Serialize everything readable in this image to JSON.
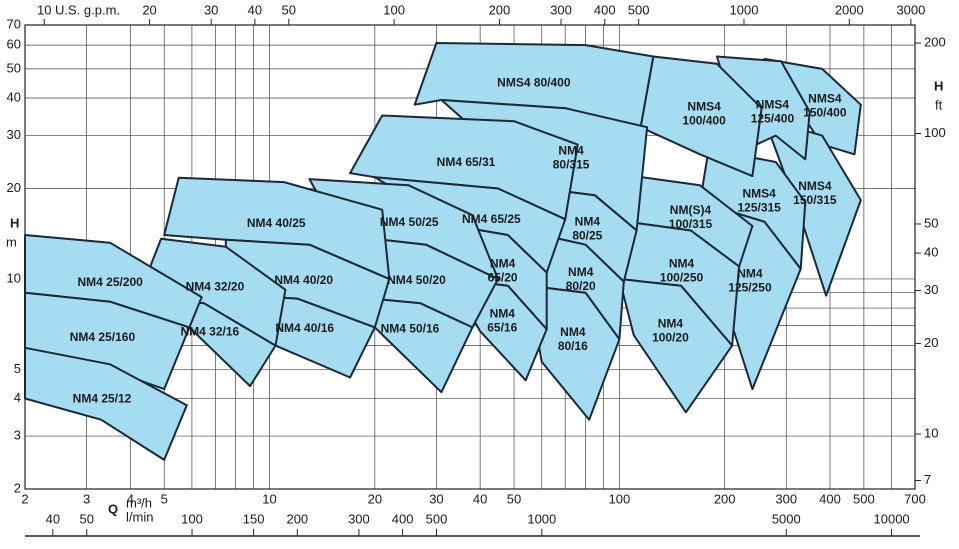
{
  "chart_data": {
    "type": "region",
    "log_scale": true,
    "grid": true,
    "fill": "#a6dcf2",
    "stroke": "#1b2836",
    "x_label": "Q",
    "x_unit": "m³/h",
    "x2_unit": "l/min",
    "x_top_label": "U.S. g.p.m.",
    "y_label": "H",
    "y_unit": "m",
    "y2_label": "H",
    "y2_unit": "ft",
    "xlim": [
      2,
      700
    ],
    "xticks": [
      2,
      3,
      4,
      5,
      10,
      20,
      30,
      40,
      50,
      100,
      200,
      300,
      400,
      500,
      700
    ],
    "x_minor_ticks": [
      6,
      7,
      8,
      9,
      60,
      70,
      80,
      90,
      600
    ],
    "ylim": [
      2,
      70
    ],
    "yticks": [
      2,
      3,
      4,
      5,
      10,
      20,
      30,
      40,
      50,
      60,
      70
    ],
    "y_minor_ticks": [
      6,
      7,
      8,
      9
    ],
    "top_xlim": [
      8.81,
      3082
    ],
    "top_xticks": [
      10,
      20,
      30,
      40,
      50,
      100,
      200,
      300,
      400,
      500,
      1000,
      2000,
      3000
    ],
    "bottom2_xlim": [
      33.3,
      11667
    ],
    "bottom2_xticks": [
      40,
      50,
      100,
      150,
      200,
      300,
      400,
      500,
      1000,
      5000,
      10000
    ],
    "y2lim": [
      6.56,
      229.7
    ],
    "y2ticks": [
      7,
      10,
      20,
      30,
      40,
      50,
      100,
      200
    ],
    "regions": [
      {
        "label": [
          "NMS4",
          "150/400"
        ],
        "q": [
          260,
          380,
          490,
          470,
          380
        ],
        "h": [
          54,
          50,
          38,
          26,
          28
        ]
      },
      {
        "label": [
          "NMS4",
          "150/315"
        ],
        "q": [
          260,
          380,
          490,
          390,
          330
        ],
        "h": [
          34,
          30,
          18.3,
          8.8,
          16
        ]
      },
      {
        "label": [
          "NMS4",
          "125/400"
        ],
        "q": [
          190,
          290,
          350,
          340,
          280,
          230
        ],
        "h": [
          55,
          53,
          36,
          25,
          30,
          27
        ]
      },
      {
        "label": [
          "NMS4",
          "125/315"
        ],
        "q": [
          180,
          280,
          340,
          330,
          260,
          170
        ],
        "h": [
          27,
          24.5,
          18,
          10.8,
          15.5,
          18
        ]
      },
      {
        "label": [
          "NM4",
          "125/250"
        ],
        "q": [
          170,
          260,
          330,
          240,
          210
        ],
        "h": [
          18,
          15.5,
          10.8,
          4.3,
          7
        ]
      },
      {
        "label": [
          "NMS4",
          "100/400"
        ],
        "q": [
          125,
          190,
          255,
          240,
          170,
          115
        ],
        "h": [
          55,
          52,
          37,
          22,
          26,
          32
        ]
      },
      {
        "label": [
          "NM(S)4",
          "100/315"
        ],
        "q": [
          110,
          170,
          240,
          220,
          160,
          105
        ],
        "h": [
          22,
          20.5,
          15,
          11,
          14.5,
          15.5
        ]
      },
      {
        "label": [
          "NM4",
          "100/250"
        ],
        "q": [
          105,
          160,
          220,
          210,
          150,
          100
        ],
        "h": [
          15.5,
          14.5,
          11,
          6,
          9.5,
          10
        ]
      },
      {
        "label": [
          "NM4",
          "100/20"
        ],
        "q": [
          100,
          150,
          210,
          155,
          110
        ],
        "h": [
          10,
          9.5,
          6,
          3.6,
          6.5
        ]
      },
      {
        "label": [
          "NMS4 80/400"
        ],
        "q": [
          30,
          80,
          125,
          115,
          70,
          31,
          26
        ],
        "h": [
          61,
          60,
          55,
          32,
          37,
          39.4,
          38
        ]
      },
      {
        "label": [
          "NM4",
          "80/315"
        ],
        "q": [
          31,
          70,
          120,
          112,
          85,
          60
        ],
        "h": [
          39.4,
          37,
          32,
          14.5,
          19,
          20
        ]
      },
      {
        "label": [
          "NM4",
          "80/25"
        ],
        "q": [
          60,
          85,
          112,
          103,
          80,
          60
        ],
        "h": [
          20,
          19,
          14.5,
          9.8,
          13,
          14
        ]
      },
      {
        "label": [
          "NM4",
          "80/20"
        ],
        "q": [
          60,
          80,
          103,
          100,
          80,
          55
        ],
        "h": [
          14,
          13,
          9.8,
          6.3,
          9,
          9.5
        ]
      },
      {
        "label": [
          "NM4",
          "80/16"
        ],
        "q": [
          55,
          80,
          100,
          82,
          60
        ],
        "h": [
          9.5,
          9,
          6.3,
          3.4,
          5.3
        ]
      },
      {
        "label": [
          "NM4 65/31"
        ],
        "q": [
          21,
          50,
          76,
          70,
          45,
          20,
          17
        ],
        "h": [
          35,
          33.5,
          28,
          15.8,
          20,
          21.8,
          22.5
        ]
      },
      {
        "label": [
          "NM4 65/25"
        ],
        "q": [
          20,
          45,
          70,
          62,
          48,
          34
        ],
        "h": [
          21.8,
          20,
          15.8,
          10.5,
          14,
          15
        ]
      },
      {
        "label": [
          "NM4",
          "65/20"
        ],
        "q": [
          34,
          48,
          62,
          62,
          48,
          33
        ],
        "h": [
          15,
          14,
          10.5,
          6.8,
          9.5,
          10
        ]
      },
      {
        "label": [
          "NM4",
          "65/16"
        ],
        "q": [
          33,
          48,
          62,
          54,
          40
        ],
        "h": [
          10,
          9.5,
          6.8,
          4.6,
          6.7
        ]
      },
      {
        "label": [
          "NM4 50/25"
        ],
        "q": [
          13,
          25,
          38,
          45,
          28,
          16
        ],
        "h": [
          21.5,
          20.5,
          16.3,
          10,
          13,
          14
        ]
      },
      {
        "label": [
          "NM4 50/20"
        ],
        "q": [
          16,
          28,
          45,
          38,
          27,
          16
        ],
        "h": [
          14,
          13,
          10,
          6.9,
          8.3,
          8.8
        ]
      },
      {
        "label": [
          "NM4 50/16"
        ],
        "q": [
          16,
          27,
          38,
          31,
          20
        ],
        "h": [
          8.8,
          8.3,
          6.9,
          4.2,
          6.9
        ]
      },
      {
        "label": [
          "NM4 40/25"
        ],
        "q": [
          5.5,
          11,
          21,
          22,
          13,
          7.5,
          5
        ],
        "h": [
          21.7,
          21,
          17,
          10,
          13,
          13.5,
          14
        ]
      },
      {
        "label": [
          "NM4 40/20"
        ],
        "q": [
          7.5,
          13,
          22,
          20,
          12,
          7.5
        ],
        "h": [
          13.5,
          13,
          10,
          6.9,
          8.6,
          8.9
        ]
      },
      {
        "label": [
          "NM4 40/16"
        ],
        "q": [
          7.5,
          12,
          20,
          17,
          10.4
        ],
        "h": [
          8.9,
          8.6,
          6.9,
          4.7,
          6
        ]
      },
      {
        "label": [
          "NM4 32/20"
        ],
        "q": [
          4.9,
          7.5,
          11.1,
          10.4,
          6.5,
          4.2
        ],
        "h": [
          13.6,
          12.8,
          9.2,
          6,
          8.3,
          8.6
        ]
      },
      {
        "label": [
          "NM4 32/16"
        ],
        "q": [
          4,
          6.5,
          10.4,
          8.8,
          5.9
        ],
        "h": [
          8.6,
          8.3,
          6,
          4.4,
          6.9
        ]
      },
      {
        "label": [
          "NM4 25/200"
        ],
        "q": [
          2,
          3.5,
          6.4,
          5.9,
          3.5,
          2
        ],
        "h": [
          14,
          13.2,
          8.7,
          6.9,
          8.4,
          9
        ]
      },
      {
        "label": [
          "NM4 25/160"
        ],
        "q": [
          2,
          3.5,
          5.9,
          5,
          3.3,
          2
        ],
        "h": [
          9,
          8.4,
          6.9,
          4.3,
          5.1,
          5.9
        ]
      },
      {
        "label": [
          "NM4 25/12"
        ],
        "q": [
          2,
          3.5,
          5.8,
          5,
          3.3,
          2
        ],
        "h": [
          5.9,
          5.2,
          3.8,
          2.5,
          3.4,
          4
        ]
      }
    ]
  }
}
